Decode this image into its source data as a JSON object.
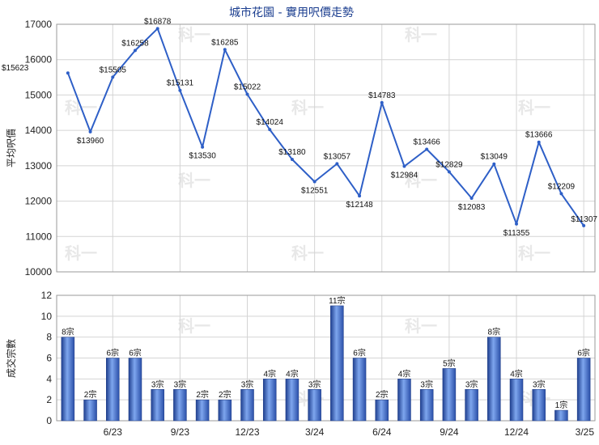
{
  "chart_data": [
    {
      "type": "line",
      "title": "城市花園 - 實用呎價走勢",
      "ylabel": "平均呎價",
      "ylim": [
        10000,
        17000
      ],
      "yticks": [
        10000,
        11000,
        12000,
        13000,
        14000,
        15000,
        16000,
        17000
      ],
      "value_prefix": "$",
      "grid": true,
      "line_color": "#2e5fc7",
      "values": [
        15623,
        13960,
        15505,
        16258,
        16878,
        15131,
        13530,
        16285,
        15022,
        14024,
        13180,
        12551,
        13057,
        12148,
        14783,
        12984,
        13466,
        12829,
        12083,
        13049,
        11355,
        13666,
        12209,
        11307
      ]
    },
    {
      "type": "bar",
      "ylabel": "成交宗數",
      "ylim": [
        0,
        12
      ],
      "yticks": [
        0,
        2,
        4,
        6,
        8,
        10,
        12
      ],
      "value_suffix": "宗",
      "grid": true,
      "bar_color": "#3a67c9",
      "values": [
        8,
        2,
        6,
        6,
        3,
        3,
        2,
        2,
        3,
        4,
        4,
        3,
        11,
        6,
        2,
        4,
        3,
        5,
        3,
        8,
        4,
        3,
        1,
        6
      ]
    }
  ],
  "x_axis": {
    "tick_labels": [
      "6/23",
      "9/23",
      "12/23",
      "3/24",
      "6/24",
      "9/24",
      "12/24",
      "3/25"
    ]
  },
  "watermark": "科一"
}
